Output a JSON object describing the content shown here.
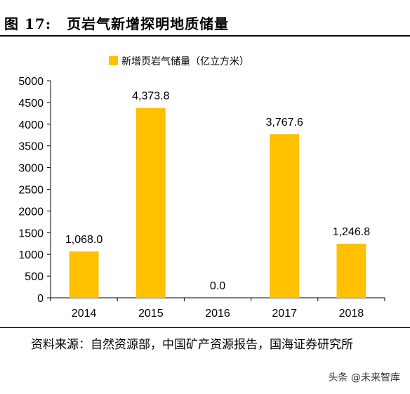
{
  "figure": {
    "number": "图 17:",
    "title": "页岩气新增探明地质储量"
  },
  "source": "资料来源：自然资源部，中国矿产资源报告，国海证券研究所",
  "watermark": "头条 @未来智库",
  "colors": {
    "bar": "#FFC000",
    "axis": "#000000"
  },
  "chart_data": {
    "type": "bar",
    "categories": [
      "2014",
      "2015",
      "2016",
      "2017",
      "2018"
    ],
    "series": [
      {
        "name": "新增页岩气储量（亿立方米）",
        "values": [
          1068.0,
          4373.8,
          0.0,
          3767.6,
          1246.8
        ]
      }
    ],
    "data_labels": [
      "1,068.0",
      "4,373.8",
      "0.0",
      "3,767.6",
      "1,246.8"
    ],
    "ylim": [
      0,
      5000
    ],
    "yticks": [
      0,
      500,
      1000,
      1500,
      2000,
      2500,
      3000,
      3500,
      4000,
      4500,
      5000
    ],
    "legend_position": "top",
    "grid": false
  }
}
